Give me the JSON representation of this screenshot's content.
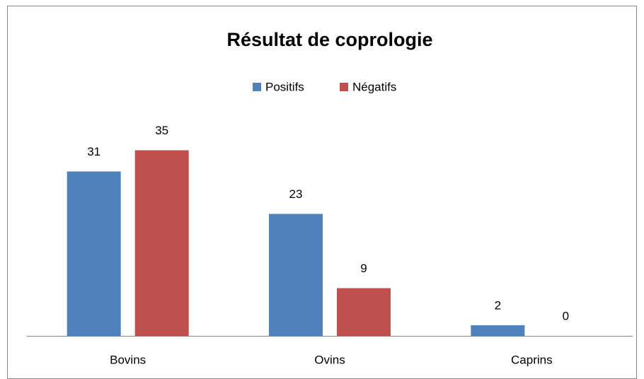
{
  "chart_data": {
    "type": "bar",
    "title": "Résultat de coprologie",
    "categories": [
      "Bovins",
      "Ovins",
      "Caprins"
    ],
    "series": [
      {
        "name": "Positifs",
        "color": "#4f81bd",
        "values": [
          31,
          23,
          2
        ]
      },
      {
        "name": "Négatifs",
        "color": "#c0504d",
        "values": [
          35,
          9,
          0
        ]
      }
    ],
    "ylim": [
      0,
      40
    ],
    "legend": "top"
  }
}
